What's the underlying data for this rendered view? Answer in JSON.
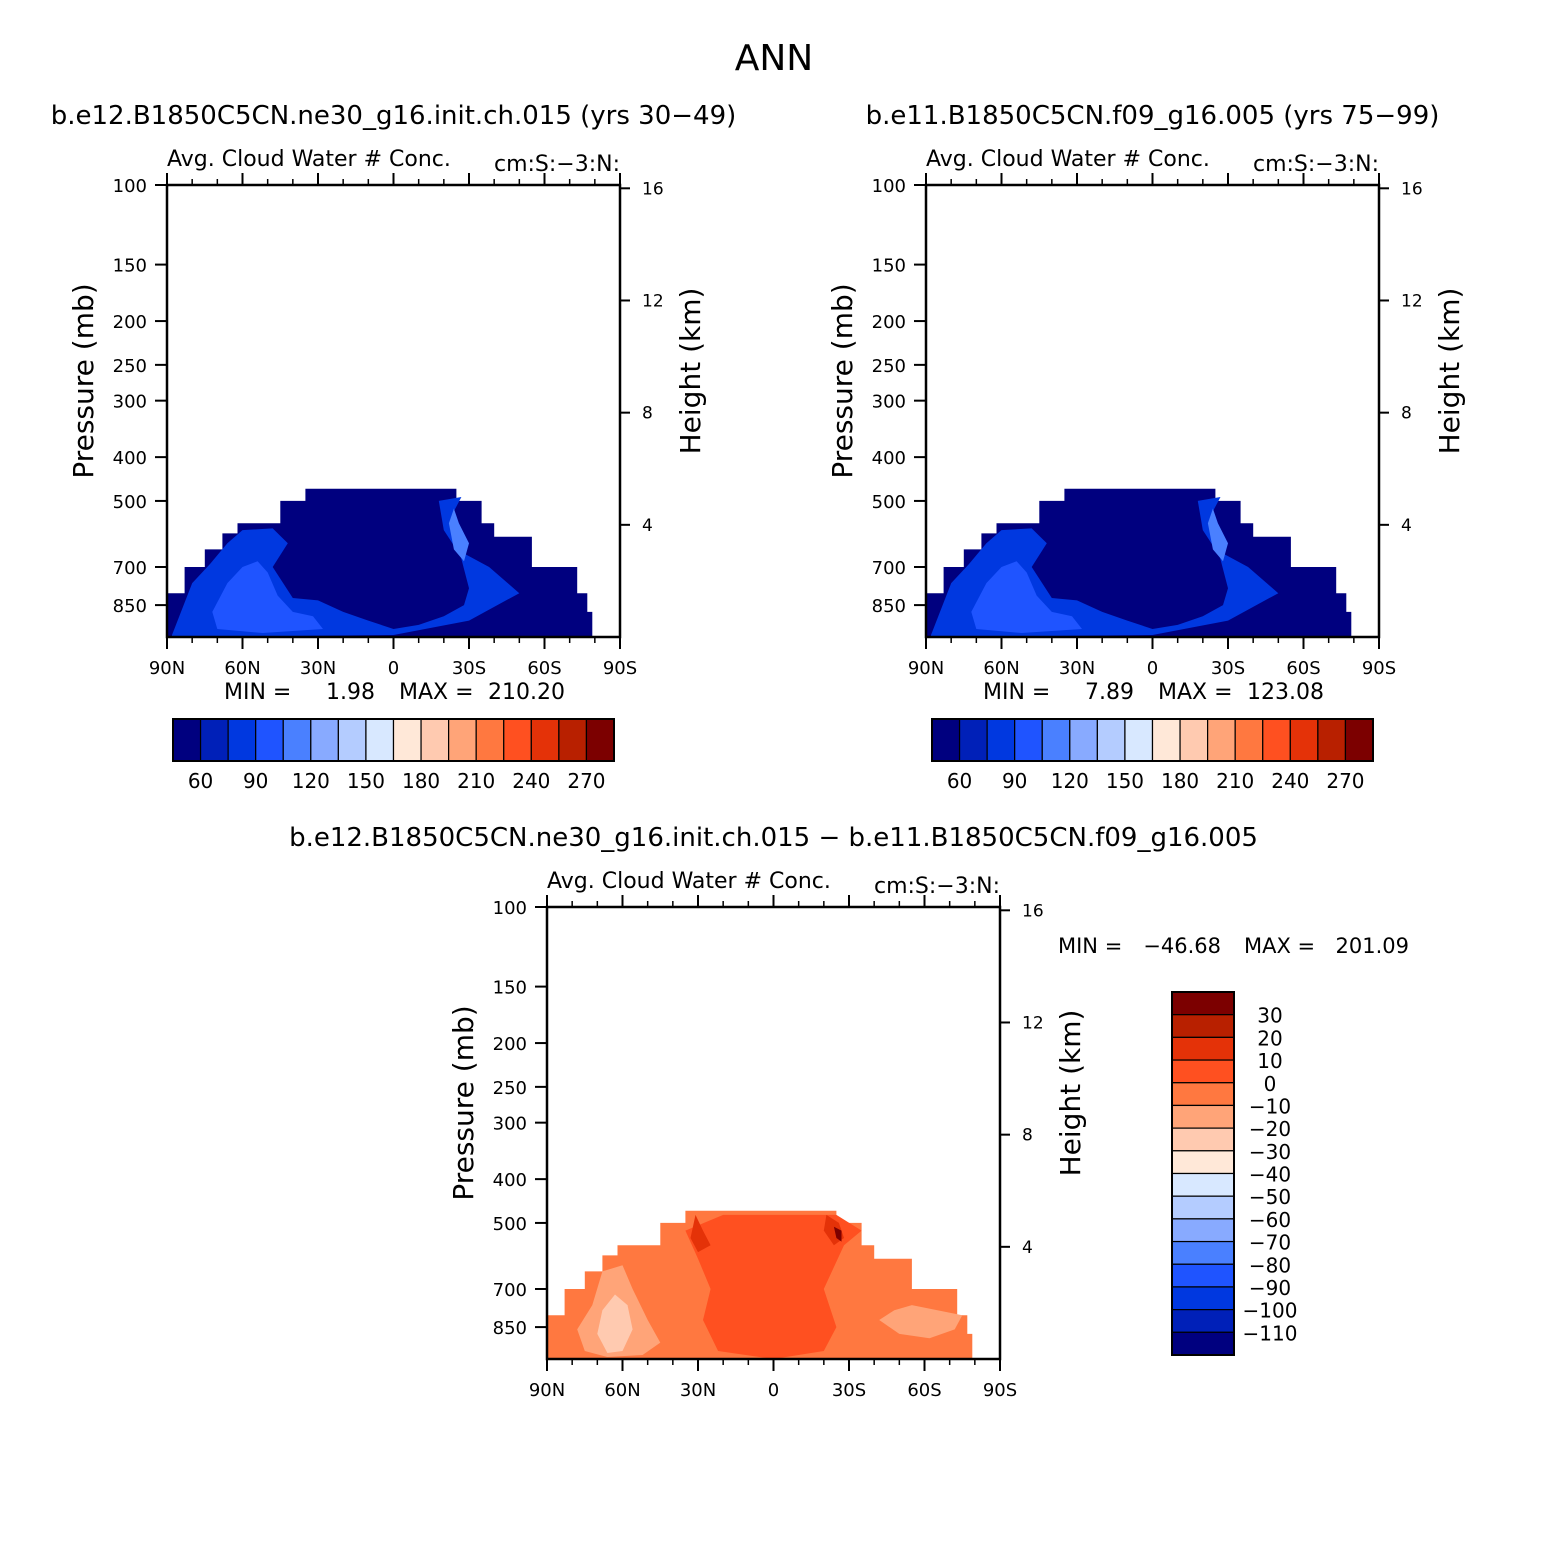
{
  "figure": {
    "title": "ANN"
  },
  "colors": {
    "abs_palette": [
      "#00007f",
      "#0020b8",
      "#0038e0",
      "#1f54ff",
      "#4a80ff",
      "#88aaff",
      "#b4ccff",
      "#d8e8ff",
      "#ffe8d8",
      "#ffcab0",
      "#ffa478",
      "#ff7840",
      "#ff5020",
      "#e43208",
      "#b82000",
      "#7c0000"
    ],
    "diff_palette": [
      "#00007f",
      "#0020b8",
      "#0038e0",
      "#1f54ff",
      "#4a80ff",
      "#88aaff",
      "#b4ccff",
      "#d8e8ff",
      "#ffe8d8",
      "#ffcab0",
      "#ffa478",
      "#ff7840",
      "#ff5020",
      "#e43208",
      "#b82000",
      "#7c0000"
    ]
  },
  "chart_data": [
    {
      "type": "heatmap",
      "title": "b.e12.B1850C5CN.ne30_g16.init.ch.015 (yrs 30−49)",
      "subtitle": "Avg. Cloud Water # Conc.",
      "right_string": "cm:S:−3:N:",
      "xlabel": "",
      "ylabel": "Pressure (mb)",
      "ylabel_right": "Height (km)",
      "x_ticks": [
        "90N",
        "60N",
        "30N",
        "0",
        "30S",
        "60S",
        "90S"
      ],
      "y_ticks": [
        100,
        150,
        200,
        250,
        300,
        400,
        500,
        700,
        850
      ],
      "y_ticks_right": [
        16,
        12,
        8,
        4
      ],
      "ylim": [
        100,
        1000
      ],
      "y_scale": "log",
      "min_label": "MIN =",
      "min_value": "1.98",
      "max_label": "MAX =",
      "max_value": "210.20",
      "colorbar_labels": [
        "60",
        "90",
        "120",
        "150",
        "180",
        "210",
        "240",
        "270"
      ],
      "colorbar_orientation": "horizontal"
    },
    {
      "type": "heatmap",
      "title": "b.e11.B1850C5CN.f09_g16.005 (yrs 75−99)",
      "subtitle": "Avg. Cloud Water # Conc.",
      "right_string": "cm:S:−3:N:",
      "xlabel": "",
      "ylabel": "Pressure (mb)",
      "ylabel_right": "Height (km)",
      "x_ticks": [
        "90N",
        "60N",
        "30N",
        "0",
        "30S",
        "60S",
        "90S"
      ],
      "y_ticks": [
        100,
        150,
        200,
        250,
        300,
        400,
        500,
        700,
        850
      ],
      "y_ticks_right": [
        16,
        12,
        8,
        4
      ],
      "ylim": [
        100,
        1000
      ],
      "y_scale": "log",
      "min_label": "MIN =",
      "min_value": "7.89",
      "max_label": "MAX =",
      "max_value": "123.08",
      "colorbar_labels": [
        "60",
        "90",
        "120",
        "150",
        "180",
        "210",
        "240",
        "270"
      ],
      "colorbar_orientation": "horizontal"
    },
    {
      "type": "heatmap",
      "title": "b.e12.B1850C5CN.ne30_g16.init.ch.015 − b.e11.B1850C5CN.f09_g16.005",
      "subtitle": "Avg. Cloud Water # Conc.",
      "right_string": "cm:S:−3:N:",
      "xlabel": "",
      "ylabel": "Pressure (mb)",
      "ylabel_right": "Height (km)",
      "x_ticks": [
        "90N",
        "60N",
        "30N",
        "0",
        "30S",
        "60S",
        "90S"
      ],
      "y_ticks": [
        100,
        150,
        200,
        250,
        300,
        400,
        500,
        700,
        850
      ],
      "y_ticks_right": [
        16,
        12,
        8,
        4
      ],
      "ylim": [
        100,
        1000
      ],
      "y_scale": "log",
      "min_label": "MIN =",
      "min_value": "−46.68",
      "max_label": "MAX =",
      "max_value": "201.09",
      "colorbar_labels": [
        "30",
        "20",
        "10",
        "0",
        "−10",
        "−20",
        "−30",
        "−40",
        "−50",
        "−60",
        "−70",
        "−80",
        "−90",
        "−100",
        "−110"
      ],
      "colorbar_orientation": "vertical"
    }
  ]
}
